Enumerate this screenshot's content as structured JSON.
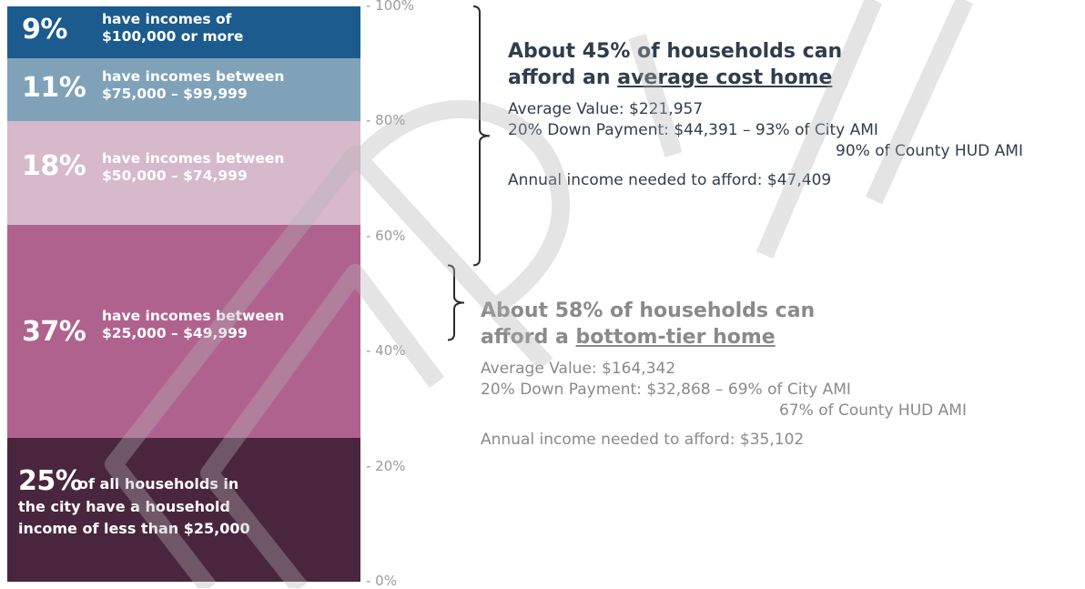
{
  "chart_data": {
    "type": "bar",
    "categories": [
      "Under $25,000",
      "$25,000 – $49,999",
      "$50,000 – $74,999",
      "$75,000 – $99,999",
      "$100,000 or more"
    ],
    "values": [
      25,
      37,
      18,
      11,
      9
    ],
    "ylim": [
      0,
      100
    ],
    "yticks": [
      "0%",
      "20%",
      "40%",
      "60%",
      "80%",
      "100%"
    ],
    "colors": [
      "#4a263e",
      "#b0628f",
      "#d6b9cb",
      "#7fa2b8",
      "#1b5b8d"
    ],
    "segments": [
      {
        "pct": "25%",
        "inline": "of all households in",
        "lines": [
          "the city have a household",
          "income of less than $25,000"
        ]
      },
      {
        "pct": "37%",
        "lines": [
          "have incomes between",
          "$25,000 – $49,999"
        ]
      },
      {
        "pct": "18%",
        "lines": [
          "have incomes between",
          "$50,000 – $74,999"
        ]
      },
      {
        "pct": "11%",
        "lines": [
          "have incomes between",
          "$75,000 – $99,999"
        ]
      },
      {
        "pct": "9%",
        "lines": [
          "have incomes of",
          "$100,000 or more"
        ]
      }
    ],
    "annotations": {
      "average_home": {
        "head_1": "About 45% of households can",
        "head_2_pre": "afford an ",
        "head_2_u": "average cost home",
        "value": "Average Value: $221,957",
        "down": "20% Down Payment: $44,391 – 93% of City AMI",
        "down_2": "90% of County HUD AMI",
        "income": "Annual income needed to afford: $47,409",
        "range": [
          55,
          100
        ]
      },
      "bottom_tier_home": {
        "head_1": "About 58% of households can",
        "head_2_pre": "afford a ",
        "head_2_u": "bottom-tier home",
        "value": "Average Value: $164,342",
        "down": "20% Down Payment: $32,868 – 69% of City AMI",
        "down_2": "67% of County HUD AMI",
        "income": "Annual income needed to afford: $35,102",
        "range": [
          42,
          55
        ]
      }
    },
    "watermark_color": "#b4b4b4",
    "brace_color": "#2b2b2b"
  }
}
